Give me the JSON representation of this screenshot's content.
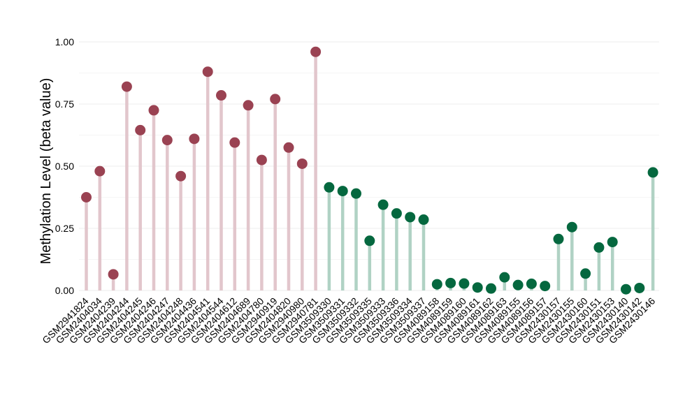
{
  "chart_data": {
    "type": "lollipop",
    "title": "",
    "xlabel": "",
    "ylabel": "Methylation Level (beta value)",
    "ylim": [
      0,
      1
    ],
    "yticks": [
      "0.00",
      "0.25",
      "0.50",
      "0.75",
      "1.00"
    ],
    "ytick_values": [
      0,
      0.25,
      0.5,
      0.75,
      1.0
    ],
    "grid": true,
    "colors": {
      "group1_point": "#9a4252",
      "group1_stem": "#e2c6cc",
      "group2_point": "#05683f",
      "group2_stem": "#b0d2c4",
      "grid": "#ececec"
    },
    "categories": [
      "GSM2941824",
      "GSM2404034",
      "GSM2404239",
      "GSM2404244",
      "GSM2404245",
      "GSM2404246",
      "GSM2404247",
      "GSM2404248",
      "GSM2404436",
      "GSM2404541",
      "GSM2404544",
      "GSM2404612",
      "GSM2404689",
      "GSM2404780",
      "GSM2940919",
      "GSM2404820",
      "GSM2940980",
      "GSM2940781",
      "GSM3509330",
      "GSM3509331",
      "GSM3509332",
      "GSM3509335",
      "GSM3509333",
      "GSM3509336",
      "GSM3509334",
      "GSM3509337",
      "GSM4089158",
      "GSM4089159",
      "GSM4089160",
      "GSM4089161",
      "GSM4089162",
      "GSM4089163",
      "GSM4089155",
      "GSM4089156",
      "GSM4089157",
      "GSM2430157",
      "GSM2430155",
      "GSM2430160",
      "GSM2430151",
      "GSM2430153",
      "GSM2430140",
      "GSM2430142",
      "GSM2430146"
    ],
    "values": [
      0.375,
      0.48,
      0.065,
      0.82,
      0.645,
      0.725,
      0.605,
      0.46,
      0.61,
      0.88,
      0.785,
      0.595,
      0.745,
      0.525,
      0.77,
      0.575,
      0.51,
      0.96,
      0.415,
      0.4,
      0.39,
      0.2,
      0.345,
      0.31,
      0.295,
      0.285,
      0.025,
      0.03,
      0.028,
      0.012,
      0.008,
      0.053,
      0.022,
      0.027,
      0.018,
      0.207,
      0.255,
      0.068,
      0.173,
      0.195,
      0.005,
      0.01,
      0.475
    ],
    "groups": [
      1,
      1,
      1,
      1,
      1,
      1,
      1,
      1,
      1,
      1,
      1,
      1,
      1,
      1,
      1,
      1,
      1,
      1,
      2,
      2,
      2,
      2,
      2,
      2,
      2,
      2,
      2,
      2,
      2,
      2,
      2,
      2,
      2,
      2,
      2,
      2,
      2,
      2,
      2,
      2,
      2,
      2,
      2
    ]
  }
}
